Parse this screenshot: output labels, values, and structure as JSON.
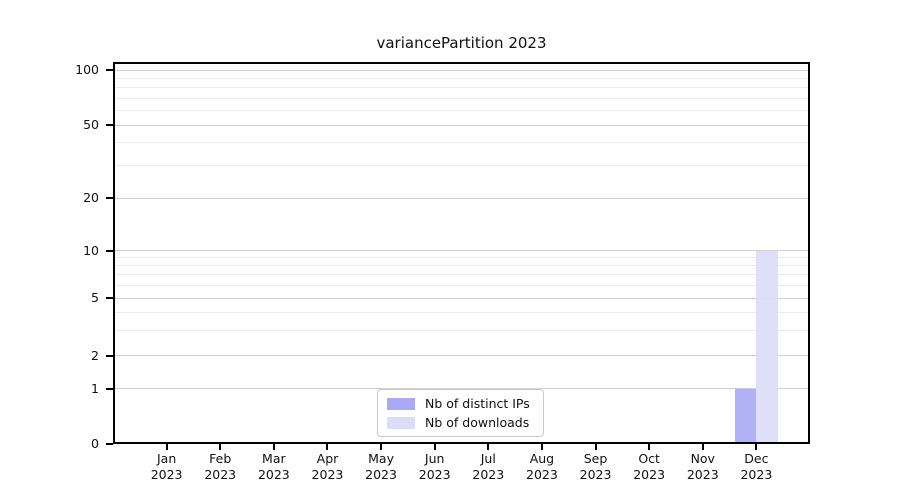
{
  "chart_data": {
    "type": "bar",
    "title": "variancePartition 2023",
    "categories": [
      "Jan",
      "Feb",
      "Mar",
      "Apr",
      "May",
      "Jun",
      "Jul",
      "Aug",
      "Sep",
      "Oct",
      "Nov",
      "Dec"
    ],
    "x_year_label": "2023",
    "series": [
      {
        "name": "Nb of distinct IPs",
        "color": "#a9a9f5",
        "values": [
          0,
          0,
          0,
          0,
          0,
          0,
          0,
          0,
          0,
          0,
          0,
          1
        ]
      },
      {
        "name": "Nb of downloads",
        "color": "#dcdcf8",
        "values": [
          0,
          0,
          0,
          0,
          0,
          0,
          0,
          0,
          0,
          0,
          0,
          10
        ]
      }
    ],
    "y_axis": {
      "ticks": [
        0,
        1,
        2,
        5,
        10,
        20,
        50,
        100
      ],
      "minor_ticks": [
        3,
        4,
        6,
        7,
        8,
        9,
        30,
        40,
        60,
        70,
        80,
        90
      ],
      "scale": "log-with-zero-baseline"
    },
    "xlabel": "",
    "ylabel": "",
    "grid": true,
    "legend": {
      "position": "lower-center-inside",
      "entries": [
        "Nb of distinct IPs",
        "Nb of downloads"
      ]
    },
    "colors": {
      "grid_major": "#d0d0d0",
      "grid_minor": "#ebebeb",
      "axis": "#000000",
      "background": "#ffffff"
    }
  }
}
